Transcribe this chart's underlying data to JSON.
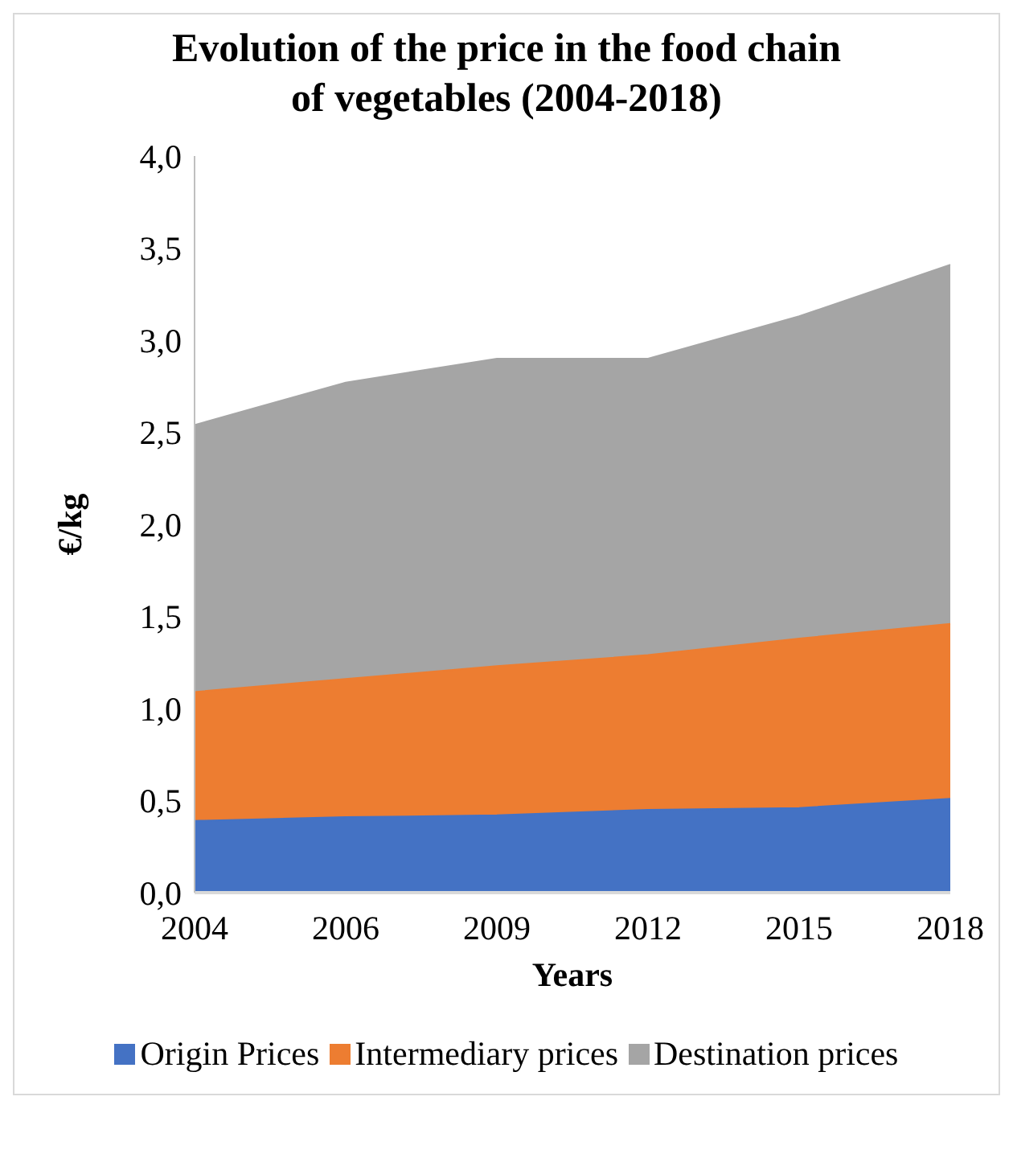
{
  "chart_data": {
    "type": "area",
    "title": "Evolution of the price in the food chain of vegetables (2004-2018)",
    "xlabel": "Years",
    "ylabel": "€/kg",
    "categories": [
      "2004",
      "2006",
      "2009",
      "2012",
      "2015",
      "2018"
    ],
    "series": [
      {
        "name": "Origin Prices",
        "color": "#4472c4",
        "values": [
          0.39,
          0.41,
          0.42,
          0.45,
          0.46,
          0.51
        ]
      },
      {
        "name": "Intermediary prices",
        "color": "#ed7d31",
        "values": [
          1.09,
          1.16,
          1.23,
          1.29,
          1.38,
          1.46
        ]
      },
      {
        "name": "Destination prices",
        "color": "#a5a5a5",
        "values": [
          2.54,
          2.77,
          2.9,
          2.9,
          3.13,
          3.41
        ]
      }
    ],
    "ylim": [
      0,
      4
    ],
    "yticks": [
      {
        "value": 0,
        "label": "0,0"
      },
      {
        "value": 0.5,
        "label": "0,5"
      },
      {
        "value": 1,
        "label": "1,0"
      },
      {
        "value": 1.5,
        "label": "1,5"
      },
      {
        "value": 2,
        "label": "2,0"
      },
      {
        "value": 2.5,
        "label": "2,5"
      },
      {
        "value": 3,
        "label": "3,0"
      },
      {
        "value": 3.5,
        "label": "3,5"
      },
      {
        "value": 4,
        "label": "4,0"
      }
    ],
    "grid": false,
    "legend": "bottom"
  }
}
